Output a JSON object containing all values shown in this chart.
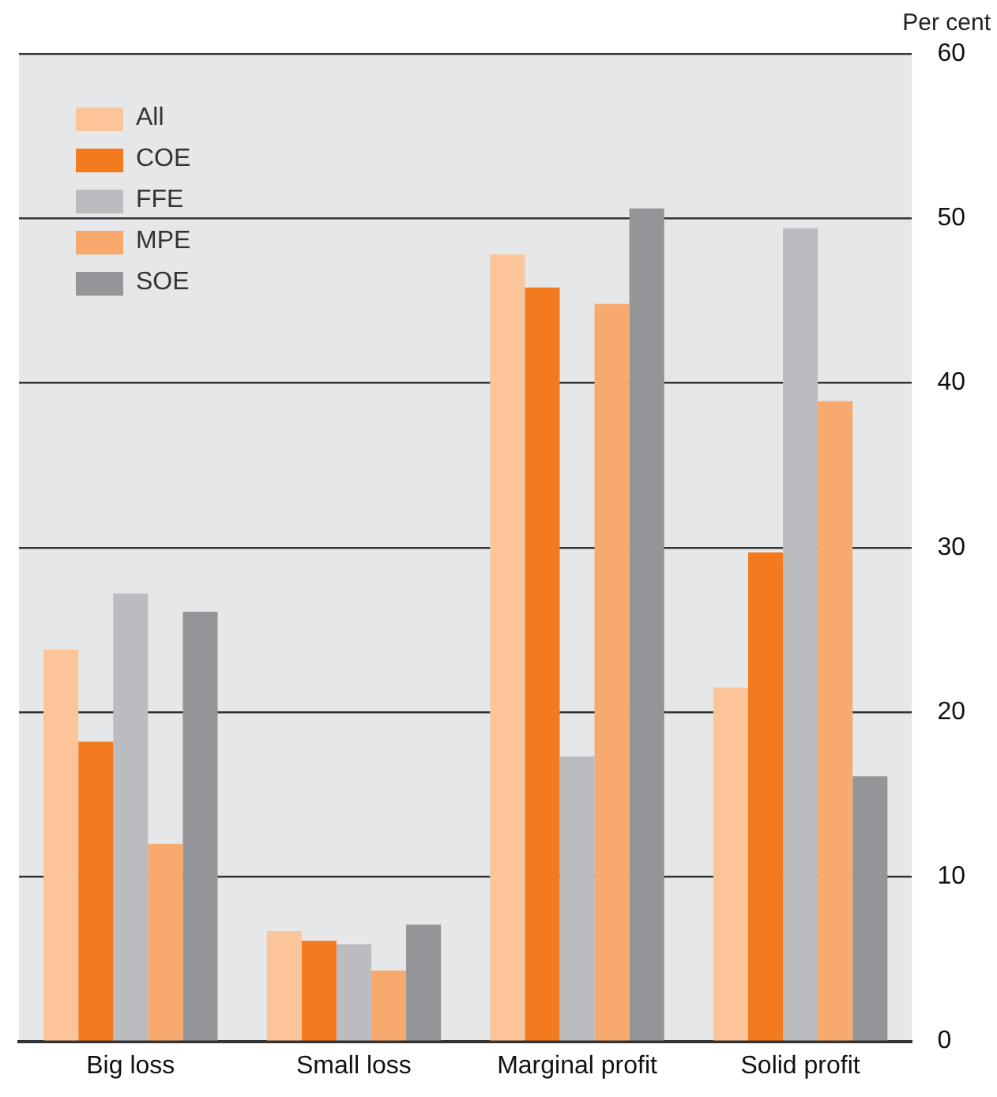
{
  "chart_data": {
    "type": "bar",
    "ylabel": "Per cent",
    "categories": [
      "Big loss",
      "Small loss",
      "Marginal profit",
      "Solid profit"
    ],
    "series": [
      {
        "name": "All",
        "color": "#fbc599",
        "values": [
          23.8,
          6.7,
          47.8,
          21.5
        ]
      },
      {
        "name": "COE",
        "color": "#f47a20",
        "values": [
          18.2,
          6.1,
          45.8,
          29.7
        ]
      },
      {
        "name": "FFE",
        "color": "#bbbcc0",
        "values": [
          27.2,
          5.9,
          17.3,
          49.4
        ]
      },
      {
        "name": "MPE",
        "color": "#f8aa6e",
        "values": [
          12.0,
          4.3,
          44.8,
          38.9
        ]
      },
      {
        "name": "SOE",
        "color": "#939598",
        "values": [
          26.1,
          7.1,
          50.6,
          16.1
        ]
      }
    ],
    "ylim": [
      0,
      60
    ],
    "yticks": [
      0,
      10,
      20,
      30,
      40,
      50,
      60
    ],
    "grid": "y",
    "legend": "top left"
  }
}
